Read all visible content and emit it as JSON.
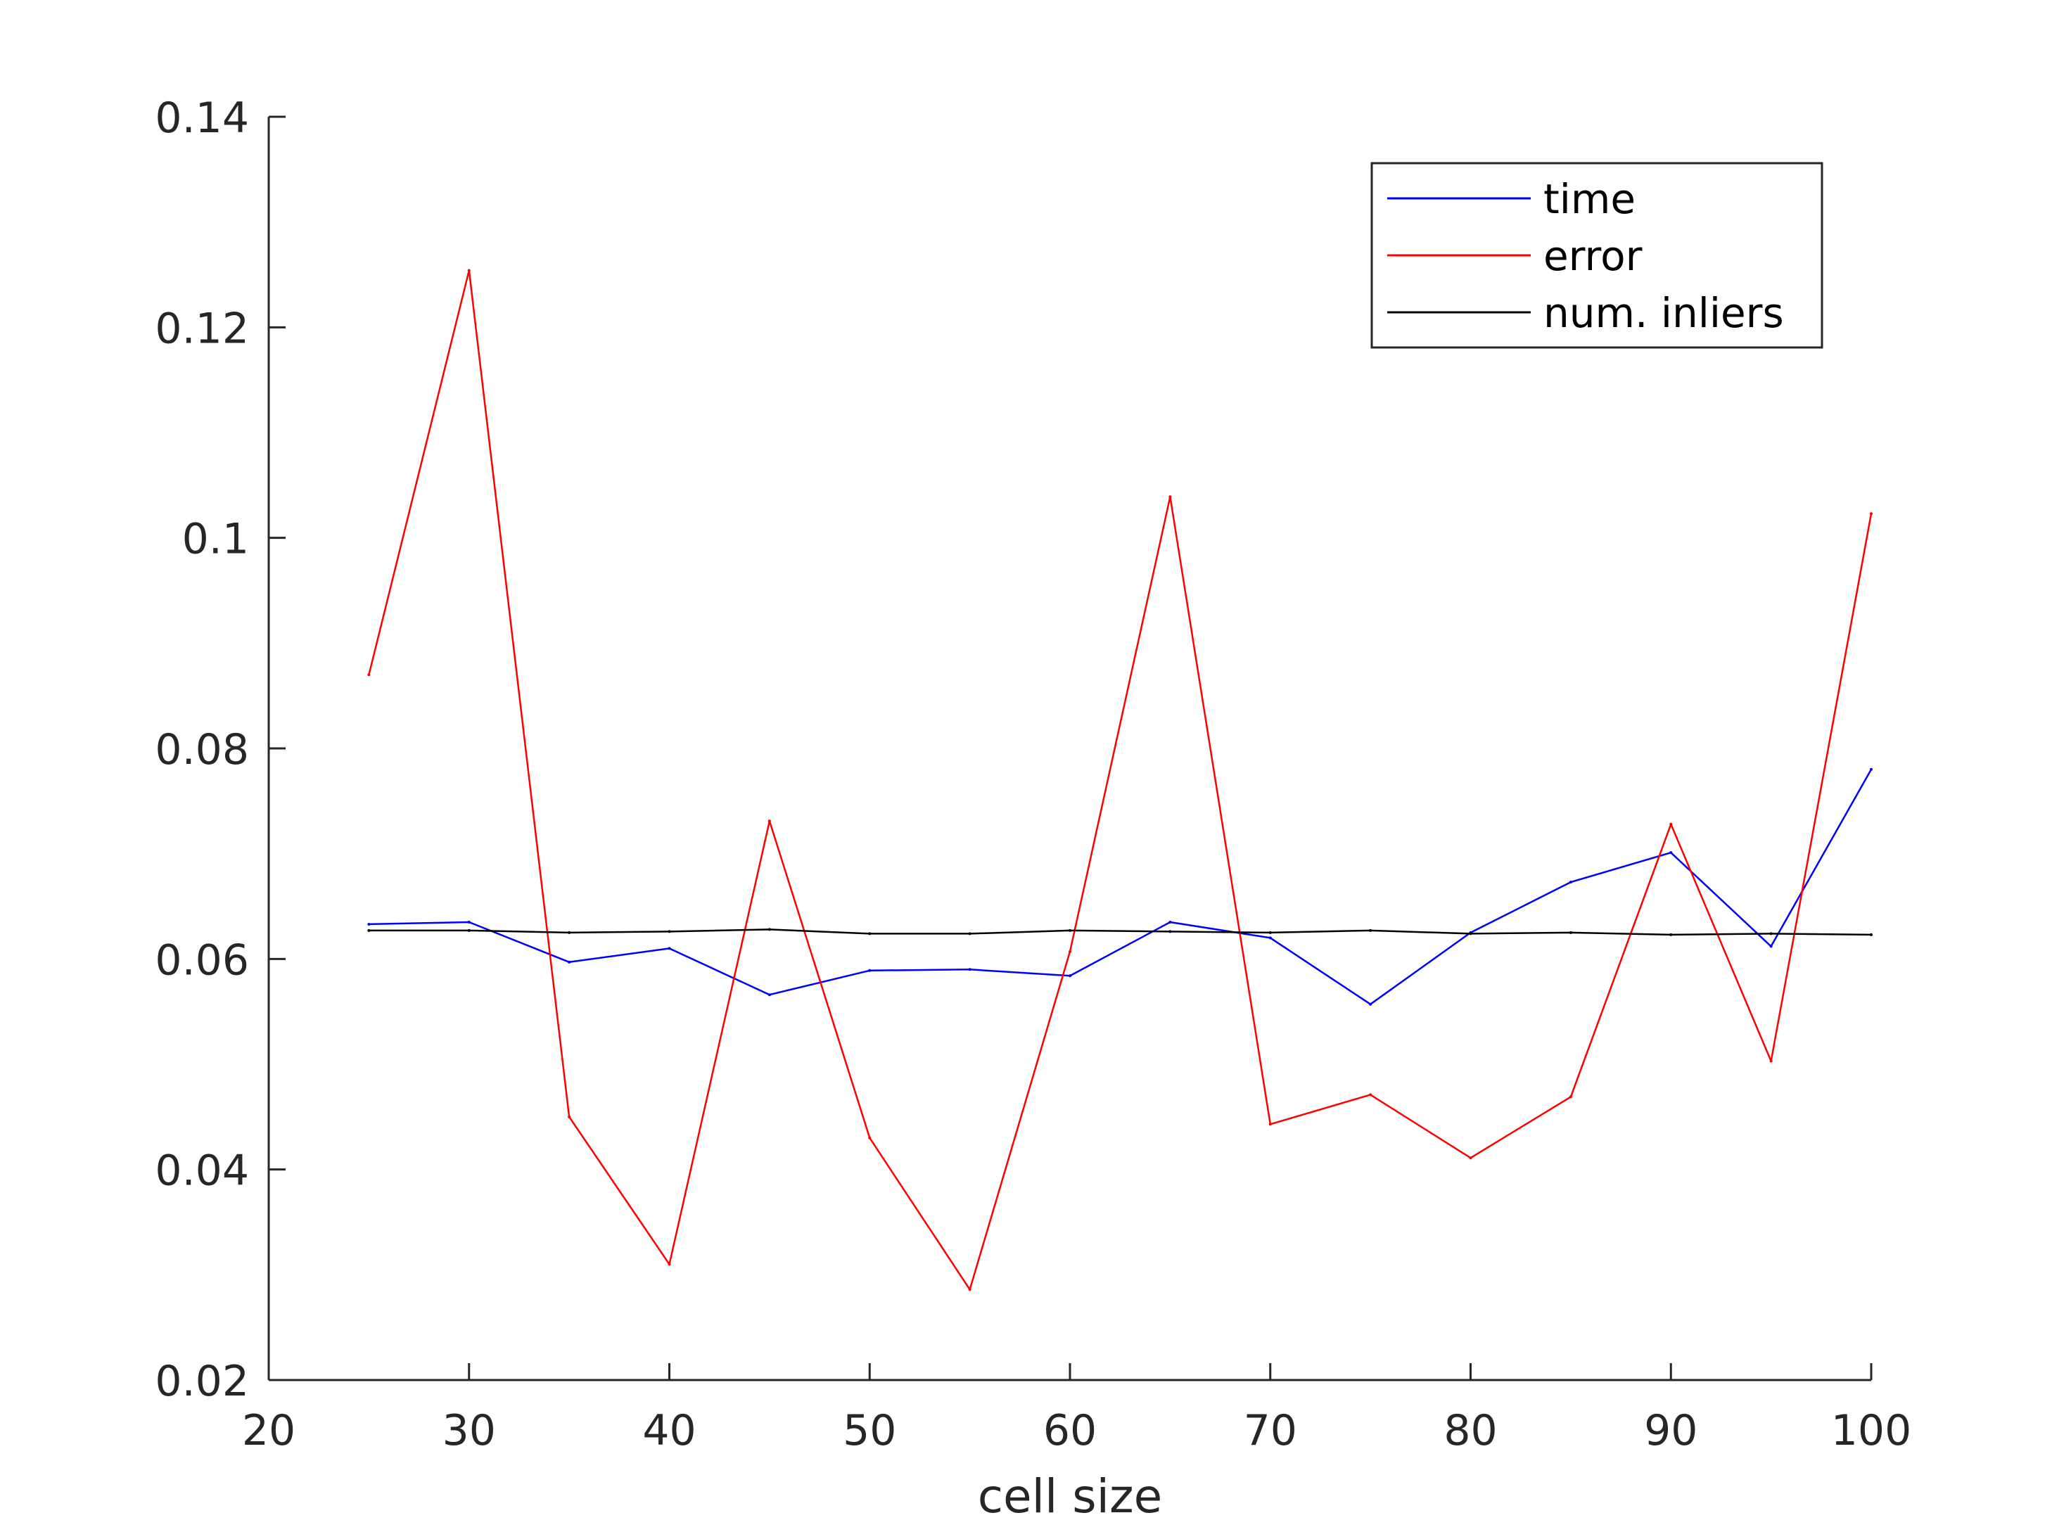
{
  "chart_data": {
    "type": "line",
    "title": "",
    "xlabel": "cell size",
    "ylabel": "",
    "xlim": [
      20,
      100
    ],
    "ylim": [
      0.02,
      0.14
    ],
    "xticks": [
      20,
      30,
      40,
      50,
      60,
      70,
      80,
      90,
      100
    ],
    "yticks": [
      0.02,
      0.04,
      0.06,
      0.08,
      0.1,
      0.12,
      0.14
    ],
    "xtick_labels": [
      "20",
      "30",
      "40",
      "50",
      "60",
      "70",
      "80",
      "90",
      "100"
    ],
    "ytick_labels": [
      "0.02",
      "0.04",
      "0.06",
      "0.08",
      "0.1",
      "0.12",
      "0.14"
    ],
    "grid": false,
    "legend_position": "top-right",
    "x": [
      25,
      30,
      35,
      40,
      45,
      50,
      55,
      60,
      65,
      70,
      75,
      80,
      85,
      90,
      95,
      100
    ],
    "series": [
      {
        "name": "time",
        "color": "#0000ff",
        "values": [
          0.0633,
          0.0635,
          0.0597,
          0.061,
          0.0566,
          0.0589,
          0.059,
          0.0584,
          0.0635,
          0.062,
          0.0557,
          0.0625,
          0.0673,
          0.0701,
          0.0612,
          0.078
        ]
      },
      {
        "name": "error",
        "color": "#ff0000",
        "values": [
          0.087,
          0.1254,
          0.045,
          0.031,
          0.0731,
          0.043,
          0.0286,
          0.0607,
          0.1039,
          0.0443,
          0.0471,
          0.0411,
          0.0469,
          0.0728,
          0.0503,
          0.1023
        ]
      },
      {
        "name": "num. inliers",
        "color": "#000000",
        "values": [
          0.0627,
          0.0627,
          0.0625,
          0.0626,
          0.0628,
          0.0624,
          0.0624,
          0.0627,
          0.0626,
          0.0625,
          0.0627,
          0.0624,
          0.0625,
          0.0623,
          0.0624,
          0.0623
        ]
      }
    ]
  }
}
